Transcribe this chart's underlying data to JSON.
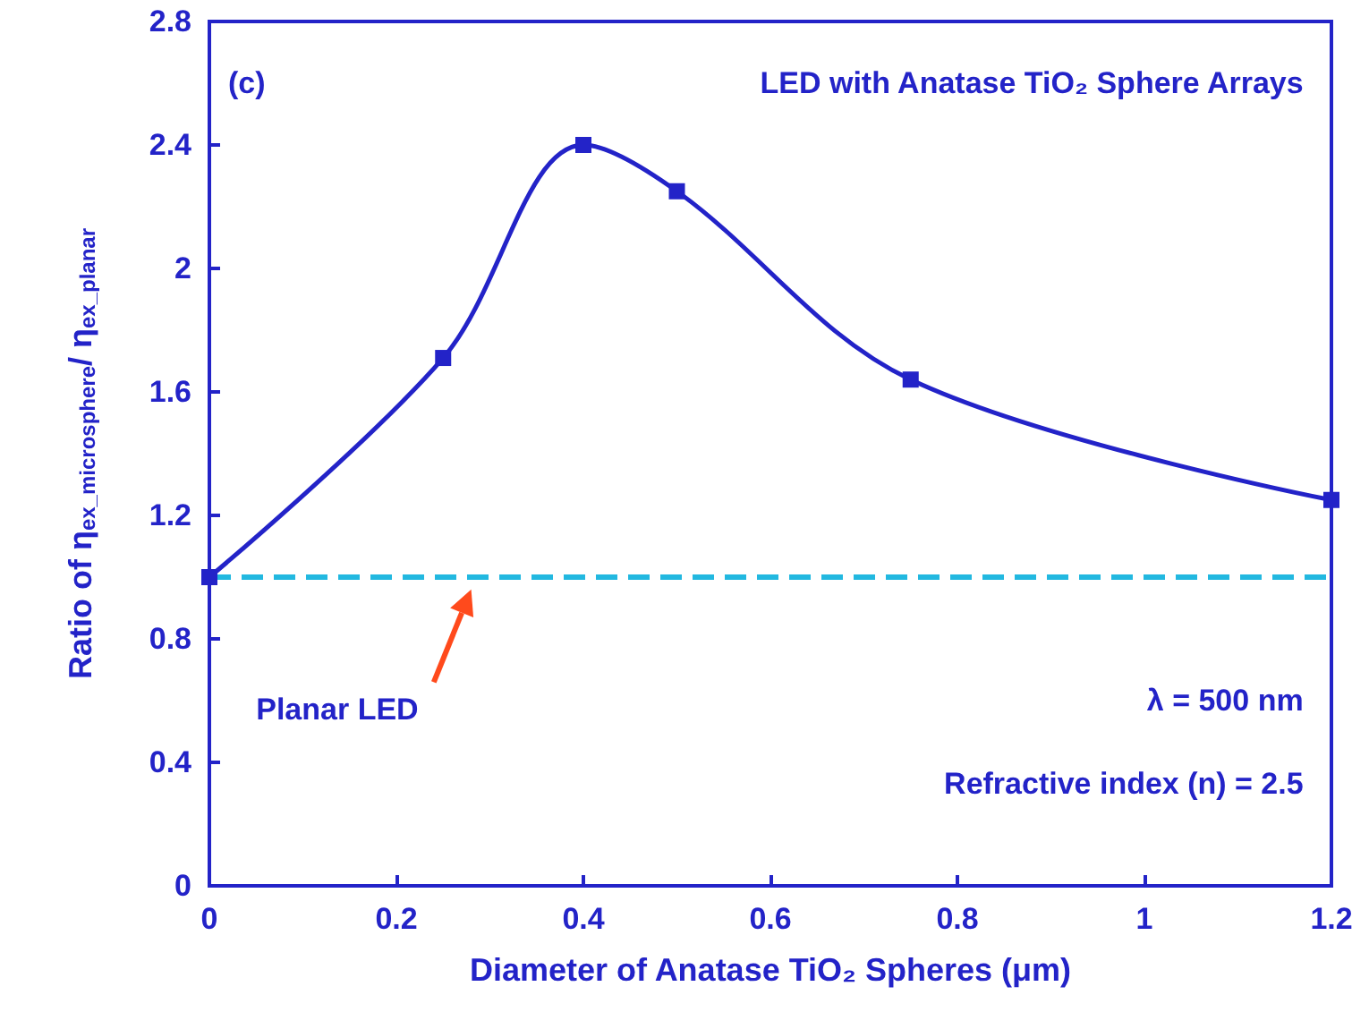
{
  "chart_data": {
    "type": "line",
    "xlabel": "Diameter of Anatase TiO₂ Spheres (μm)",
    "ylabel": "Ratio of η$_{ex_microsphere}$/ η$_{ex_planar}$",
    "x": [
      0,
      0.25,
      0.4,
      0.5,
      0.75,
      1.2
    ],
    "series": [
      {
        "color": "#2323c8",
        "values": [
          1.0,
          1.71,
          2.4,
          2.25,
          1.64,
          1.25
        ]
      }
    ],
    "xlim": [
      0,
      1.2
    ],
    "xticks": [
      0,
      0.2,
      0.4,
      0.6,
      0.8,
      1,
      1.2
    ],
    "ylim": [
      0,
      2.8
    ],
    "yticks": [
      0,
      0.4,
      0.8,
      1.2,
      1.6,
      2,
      2.4,
      2.8
    ],
    "ref_lines": [
      {
        "axis": "y",
        "value": 1,
        "color": "#22b8e0",
        "line_style": "dashed"
      }
    ],
    "annotations": [
      "(c)",
      "LED with Anatase TiO₂ Sphere Arrays",
      "Planar LED",
      "λ = 500 nm",
      "Refractive index (n) = 2.5"
    ],
    "marker": "square",
    "line_style": "solid",
    "grid": false
  }
}
